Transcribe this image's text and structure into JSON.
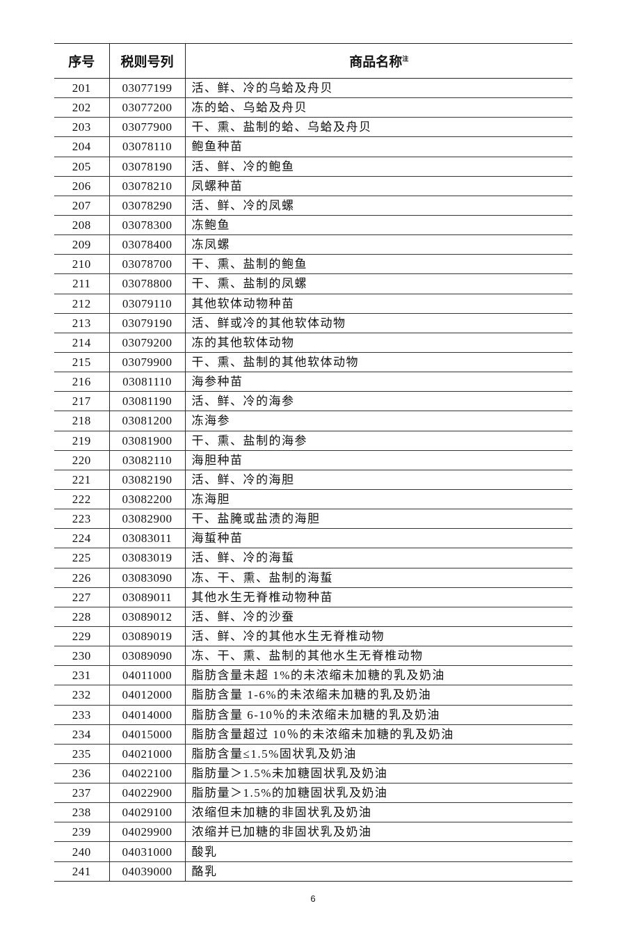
{
  "table": {
    "headers": {
      "seq": "序号",
      "code": "税则号列",
      "name": "商品名称",
      "name_note": "注"
    },
    "rows": [
      [
        "201",
        "03077199",
        "活、鲜、冷的乌蛤及舟贝"
      ],
      [
        "202",
        "03077200",
        "冻的蛤、乌蛤及舟贝"
      ],
      [
        "203",
        "03077900",
        "干、熏、盐制的蛤、乌蛤及舟贝"
      ],
      [
        "204",
        "03078110",
        "鲍鱼种苗"
      ],
      [
        "205",
        "03078190",
        "活、鲜、冷的鲍鱼"
      ],
      [
        "206",
        "03078210",
        "凤螺种苗"
      ],
      [
        "207",
        "03078290",
        "活、鲜、冷的凤螺"
      ],
      [
        "208",
        "03078300",
        "冻鲍鱼"
      ],
      [
        "209",
        "03078400",
        "冻凤螺"
      ],
      [
        "210",
        "03078700",
        "干、熏、盐制的鲍鱼"
      ],
      [
        "211",
        "03078800",
        "干、熏、盐制的凤螺"
      ],
      [
        "212",
        "03079110",
        "其他软体动物种苗"
      ],
      [
        "213",
        "03079190",
        "活、鲜或冷的其他软体动物"
      ],
      [
        "214",
        "03079200",
        "冻的其他软体动物"
      ],
      [
        "215",
        "03079900",
        "干、熏、盐制的其他软体动物"
      ],
      [
        "216",
        "03081110",
        "海参种苗"
      ],
      [
        "217",
        "03081190",
        "活、鲜、冷的海参"
      ],
      [
        "218",
        "03081200",
        "冻海参"
      ],
      [
        "219",
        "03081900",
        "干、熏、盐制的海参"
      ],
      [
        "220",
        "03082110",
        "海胆种苗"
      ],
      [
        "221",
        "03082190",
        "活、鲜、冷的海胆"
      ],
      [
        "222",
        "03082200",
        "冻海胆"
      ],
      [
        "223",
        "03082900",
        "干、盐腌或盐渍的海胆"
      ],
      [
        "224",
        "03083011",
        "海蜇种苗"
      ],
      [
        "225",
        "03083019",
        "活、鲜、冷的海蜇"
      ],
      [
        "226",
        "03083090",
        "冻、干、熏、盐制的海蜇"
      ],
      [
        "227",
        "03089011",
        "其他水生无脊椎动物种苗"
      ],
      [
        "228",
        "03089012",
        "活、鲜、冷的沙蚕"
      ],
      [
        "229",
        "03089019",
        "活、鲜、冷的其他水生无脊椎动物"
      ],
      [
        "230",
        "03089090",
        "冻、干、熏、盐制的其他水生无脊椎动物"
      ],
      [
        "231",
        "04011000",
        "脂肪含量未超 1%的未浓缩未加糖的乳及奶油"
      ],
      [
        "232",
        "04012000",
        "脂肪含量 1-6%的未浓缩未加糖的乳及奶油"
      ],
      [
        "233",
        "04014000",
        "脂肪含量 6-10％的未浓缩未加糖的乳及奶油"
      ],
      [
        "234",
        "04015000",
        "脂肪含量超过 10％的未浓缩未加糖的乳及奶油"
      ],
      [
        "235",
        "04021000",
        "脂肪含量≤1.5%固状乳及奶油"
      ],
      [
        "236",
        "04022100",
        "脂肪量＞1.5%未加糖固状乳及奶油"
      ],
      [
        "237",
        "04022900",
        "脂肪量＞1.5%的加糖固状乳及奶油"
      ],
      [
        "238",
        "04029100",
        "浓缩但未加糖的非固状乳及奶油"
      ],
      [
        "239",
        "04029900",
        "浓缩并已加糖的非固状乳及奶油"
      ],
      [
        "240",
        "04031000",
        "酸乳"
      ],
      [
        "241",
        "04039000",
        "酪乳"
      ]
    ]
  },
  "page_number": "6"
}
